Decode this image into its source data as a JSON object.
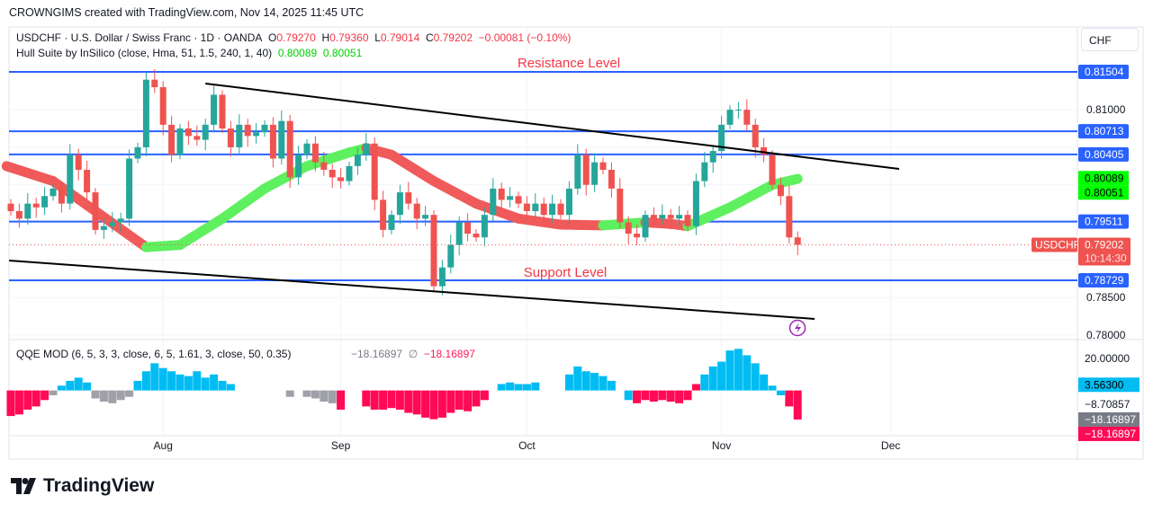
{
  "header": {
    "credit": "CROWNGIMS created with TradingView.com, Nov 14, 2025 11:45 UTC"
  },
  "legend": {
    "symbol": "USDCHF · U.S. Dollar / Swiss Franc · 1D · OANDA",
    "o_label": "O",
    "o": "0.79270",
    "h_label": "H",
    "h": "0.79360",
    "l_label": "L",
    "l": "0.79014",
    "c_label": "C",
    "c": "0.79202",
    "change": "−0.00081 (−0.10%)",
    "hull_name": "Hull Suite by InSilico (close, Hma, 51, 1.5, 240, 1, 40)",
    "hull_v1": "0.80089",
    "hull_v2": "0.80051",
    "qqe_name": "QQE MOD (6, 5, 3, 3, close, 6, 5, 1.61, 3, close, 50, 0.35)",
    "qqe_v1": "−18.16897",
    "qqe_sym": "∅",
    "qqe_v2": "−18.16897"
  },
  "currency_button": "CHF",
  "annotations": {
    "resistance": "Resistance Level",
    "support": "Support Level"
  },
  "price_axis": {
    "ticks": [
      "0.81000",
      "0.78500",
      "0.78000"
    ],
    "tick_values": [
      0.81,
      0.785,
      0.78
    ]
  },
  "levels": [
    {
      "label": "0.81504",
      "value": 0.81504
    },
    {
      "label": "0.80713",
      "value": 0.80713
    },
    {
      "label": "0.80405",
      "value": 0.80405
    },
    {
      "label": "0.79511",
      "value": 0.79511
    },
    {
      "label": "0.78729",
      "value": 0.78729
    }
  ],
  "hull_labels": [
    {
      "label": "0.80089",
      "value": 0.80089
    },
    {
      "label": "0.80051",
      "value": 0.80051
    }
  ],
  "last_price": {
    "symbol": "USDCHF",
    "price": "0.79202",
    "value": 0.79202,
    "countdown": "10:14:30"
  },
  "qqe_axis": {
    "ticks": [
      "20.00000",
      "−8.70857"
    ],
    "tick_values": [
      20,
      -8.70857
    ],
    "labels": [
      {
        "label": "3.56300",
        "value": 3.563,
        "color": "#00bcf2"
      },
      {
        "label": "−18.16897",
        "value": -18.16897,
        "color": "#787b86"
      },
      {
        "label": "−18.16897",
        "value": -20.5,
        "color": "#ff0a54"
      }
    ]
  },
  "time_axis": [
    {
      "label": "Aug",
      "bar": 18
    },
    {
      "label": "Sep",
      "bar": 39
    },
    {
      "label": "Oct",
      "bar": 61
    },
    {
      "label": "Nov",
      "bar": 84
    },
    {
      "label": "Dec",
      "bar": 104
    }
  ],
  "logo_text": "TradingView",
  "colors": {
    "up": "#26a69a",
    "down": "#ef5350",
    "level": "#2962ff",
    "hull_up": "#5ef05e",
    "hull_down": "#f05a5a",
    "qqe_blue": "#00bcf2",
    "qqe_gray": "#a0a0a8",
    "qqe_red": "#ff0a54"
  },
  "chart_data": {
    "type": "candlestick",
    "closes": [
      0.7965,
      0.7955,
      0.7975,
      0.797,
      0.7985,
      0.7995,
      0.7975,
      0.804,
      0.802,
      0.799,
      0.794,
      0.7945,
      0.795,
      0.7955,
      0.8035,
      0.805,
      0.814,
      0.813,
      0.808,
      0.804,
      0.8075,
      0.8065,
      0.806,
      0.808,
      0.812,
      0.8075,
      0.805,
      0.808,
      0.8065,
      0.807,
      0.808,
      0.8035,
      0.8085,
      0.801,
      0.804,
      0.8055,
      0.803,
      0.802,
      0.801,
      0.8005,
      0.8025,
      0.804,
      0.8055,
      0.798,
      0.794,
      0.796,
      0.799,
      0.7975,
      0.7955,
      0.796,
      0.7865,
      0.789,
      0.792,
      0.795,
      0.7935,
      0.793,
      0.796,
      0.7995,
      0.798,
      0.7985,
      0.7975,
      0.7965,
      0.7975,
      0.796,
      0.7975,
      0.796,
      0.7995,
      0.804,
      0.8,
      0.803,
      0.802,
      0.7995,
      0.795,
      0.7935,
      0.793,
      0.796,
      0.7955,
      0.796,
      0.7955,
      0.796,
      0.7945,
      0.8005,
      0.803,
      0.8045,
      0.808,
      0.81,
      0.81,
      0.808,
      0.805,
      0.804,
      0.8,
      0.7985,
      0.793,
      0.79202
    ],
    "first_open": 0.7975,
    "hull_band": [
      [
        -0.5,
        0.8025
      ],
      [
        5,
        0.8005
      ],
      [
        10,
        0.7965
      ],
      [
        15,
        0.7925
      ],
      [
        16,
        0.7917
      ],
      [
        20,
        0.792
      ],
      [
        25,
        0.7955
      ],
      [
        30,
        0.7995
      ],
      [
        35,
        0.8025
      ],
      [
        40,
        0.8043
      ],
      [
        42,
        0.8049
      ],
      [
        45,
        0.804
      ],
      [
        50,
        0.8005
      ],
      [
        55,
        0.7975
      ],
      [
        60,
        0.7955
      ],
      [
        65,
        0.7947
      ],
      [
        70,
        0.7946
      ],
      [
        75,
        0.795
      ],
      [
        78,
        0.7948
      ],
      [
        80,
        0.7945
      ],
      [
        85,
        0.797
      ],
      [
        90,
        0.8
      ],
      [
        93,
        0.8008
      ]
    ],
    "trendlines": [
      {
        "from": [
          23,
          0.81349
        ],
        "to": [
          105,
          0.80212
        ]
      },
      {
        "from": [
          -0.2,
          0.78992
        ],
        "to": [
          95,
          0.78215
        ]
      }
    ],
    "qqe": {
      "values": [
        -16,
        -15,
        -12,
        -10,
        -6,
        -3,
        3,
        6,
        8,
        5,
        -5,
        -7,
        -8,
        -6,
        -4,
        6,
        12,
        17,
        14,
        12,
        10,
        9,
        12,
        8,
        10,
        6,
        4,
        0,
        0,
        0,
        0,
        0,
        0,
        -4,
        0,
        -4,
        -5,
        -7,
        -8,
        -12,
        0,
        0,
        -10,
        -12,
        -12,
        -11,
        -12,
        -14,
        -15,
        -17,
        -18,
        -17,
        -14,
        -12,
        -13,
        -10,
        -6,
        0,
        4,
        5,
        4,
        4,
        5,
        0,
        0,
        0,
        10,
        15,
        12,
        11,
        9,
        6,
        0,
        -6,
        -8,
        -6,
        -7,
        -6,
        -7,
        -8,
        -6,
        4,
        10,
        15,
        18,
        25,
        26,
        22,
        17,
        10,
        3,
        -3,
        -10,
        -18.17
      ],
      "colors": "rrrrrgbbbbgggggbbbbbbbbbbbbggggggggggggrggrrrrrrrrrrrrrrrbbbbbbbbbbbbbbbbbrrrrrrrrbbbbbbbbbbrrr"
    }
  }
}
